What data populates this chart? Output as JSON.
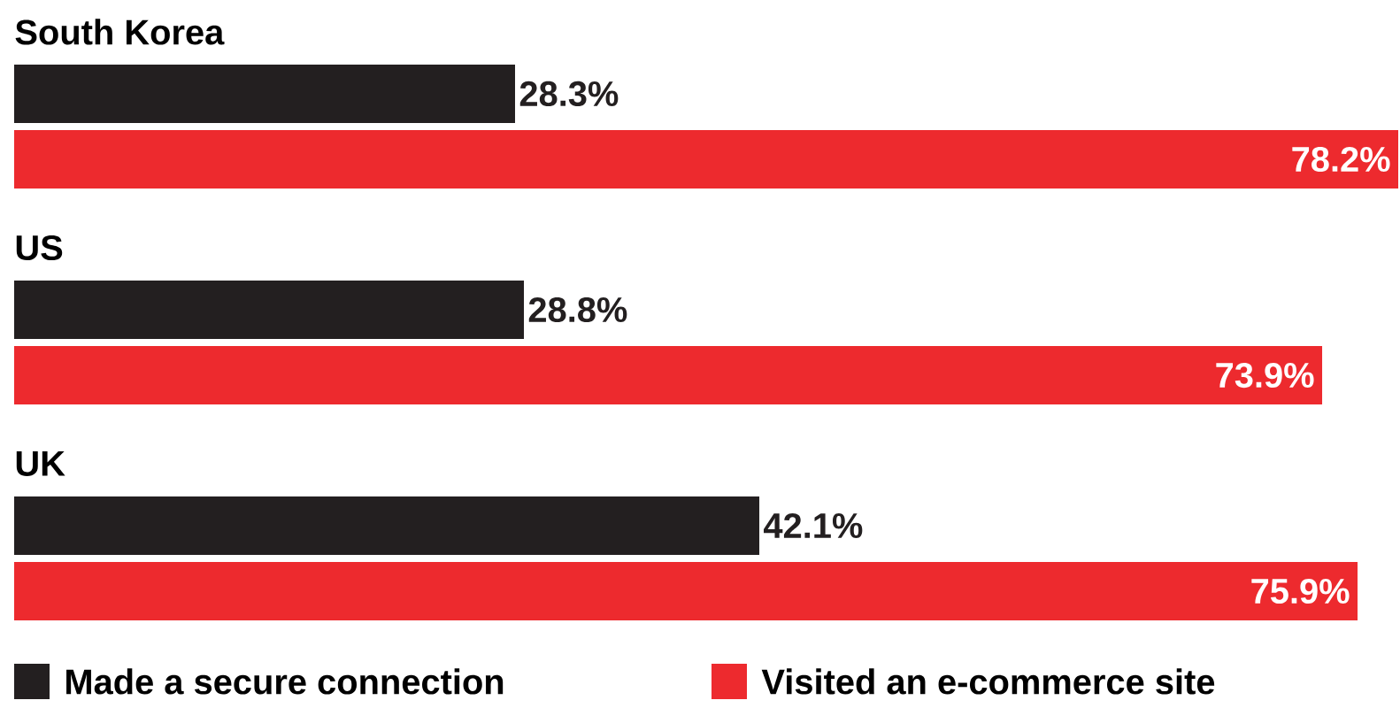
{
  "chart_data": {
    "type": "bar",
    "orientation": "horizontal",
    "categories": [
      "South Korea",
      "US",
      "UK"
    ],
    "series": [
      {
        "name": "Made a secure connection",
        "color": "#231f20",
        "values": [
          28.3,
          28.8,
          42.1
        ],
        "value_labels": [
          "28.3%",
          "28.8%",
          "42.1%"
        ]
      },
      {
        "name": "Visited an e-commerce site",
        "color": "#ed2a2e",
        "values": [
          78.2,
          73.9,
          75.9
        ],
        "value_labels": [
          "78.2%",
          "73.9%",
          "75.9%"
        ]
      }
    ],
    "xlim": [
      0,
      78.2
    ],
    "legend": "bottom"
  }
}
